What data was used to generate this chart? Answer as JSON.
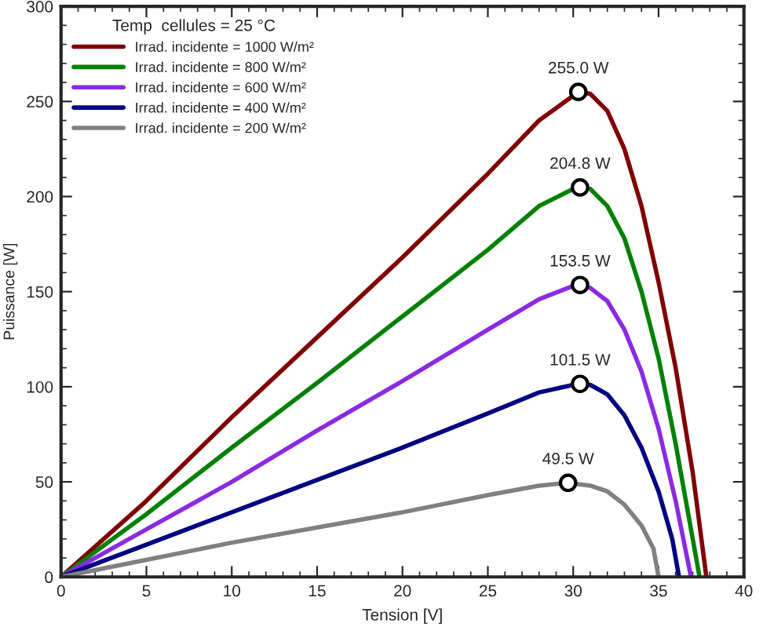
{
  "chart_data": {
    "type": "line",
    "xlabel": "Tension [V]",
    "ylabel": "Puissance [W]",
    "legend_title": "Temp  cellules = 25 °C",
    "legend": "top left",
    "grid": false,
    "marker": "none",
    "line_style": "solid",
    "xlim": [
      0,
      40
    ],
    "ylim": [
      0,
      300
    ],
    "xticks": [
      0,
      5,
      10,
      15,
      20,
      25,
      30,
      35,
      40
    ],
    "yticks": [
      0,
      50,
      100,
      150,
      200,
      250,
      300
    ],
    "series": [
      {
        "name": "Irrad. incidente = 1000 W/m²",
        "color": "#800000",
        "x": [
          0,
          5,
          10,
          15,
          20,
          25,
          28,
          30,
          30.3,
          31,
          32,
          33,
          34,
          35,
          36,
          37,
          37.8
        ],
        "values": [
          0,
          40,
          84,
          126,
          168,
          212,
          240,
          253,
          255,
          254,
          245,
          225,
          195,
          155,
          110,
          55,
          0
        ]
      },
      {
        "name": "Irrad. incidente = 800 W/m²",
        "color": "#008000",
        "x": [
          0,
          5,
          10,
          15,
          20,
          25,
          28,
          30,
          30.4,
          31,
          32,
          33,
          34,
          35,
          36,
          37,
          37.4
        ],
        "values": [
          0,
          33,
          68,
          102,
          137,
          172,
          195,
          204,
          204.8,
          204,
          195,
          178,
          150,
          115,
          70,
          20,
          0
        ]
      },
      {
        "name": "Irrad. incidente = 600 W/m²",
        "color": "#8a2be2",
        "x": [
          0,
          5,
          10,
          15,
          20,
          25,
          28,
          30,
          30.4,
          31,
          32,
          33,
          34,
          35,
          36,
          36.9
        ],
        "values": [
          0,
          25,
          50,
          77,
          103,
          130,
          146,
          153,
          153.5,
          152,
          145,
          130,
          108,
          78,
          40,
          0
        ]
      },
      {
        "name": "Irrad. incidente = 400 W/m²",
        "color": "#000080",
        "x": [
          0,
          5,
          10,
          15,
          20,
          25,
          28,
          30,
          30.4,
          31,
          32,
          33,
          34,
          35,
          35.8,
          36.2
        ],
        "values": [
          0,
          17,
          34,
          51,
          68,
          86,
          97,
          101,
          101.5,
          101,
          96,
          85,
          68,
          45,
          20,
          0
        ]
      },
      {
        "name": "Irrad. incidente = 200 W/m²",
        "color": "#808080",
        "x": [
          0,
          5,
          10,
          15,
          20,
          25,
          28,
          29.7,
          31,
          32,
          33,
          34,
          34.7,
          35
        ],
        "values": [
          0,
          9,
          18,
          26,
          34,
          43,
          48,
          49.5,
          48,
          45,
          38,
          27,
          15,
          0
        ]
      }
    ],
    "annotations": [
      {
        "text": "255.0 W",
        "x": 30.3,
        "y": 255
      },
      {
        "text": "204.8 W",
        "x": 30.4,
        "y": 204.8
      },
      {
        "text": "153.5 W",
        "x": 30.4,
        "y": 153.5
      },
      {
        "text": "101.5 W",
        "x": 30.4,
        "y": 101.5
      },
      {
        "text": "49.5 W",
        "x": 29.7,
        "y": 49.5
      }
    ]
  }
}
